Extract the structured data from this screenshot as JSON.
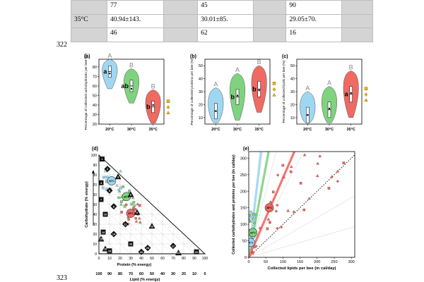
{
  "table": {
    "rows": [
      [
        "",
        "77",
        "",
        "45",
        "",
        "90",
        ""
      ],
      [
        "35°C",
        "40.94±143.",
        "",
        "30.01±85.",
        "",
        "29.05±70.",
        ""
      ],
      [
        "",
        "46",
        "",
        "62",
        "",
        "16",
        ""
      ]
    ]
  },
  "line_numbers": [
    "322",
    "323"
  ],
  "chart_data": [
    {
      "type": "violin",
      "panel": "(a)",
      "ylabel": "Percentage of collected carbohydrates per bee (%)",
      "categories": [
        "20°C",
        "30°C",
        "35°C"
      ],
      "y_ticks": [
        20,
        30,
        40,
        50,
        60,
        70,
        80
      ],
      "ylim": [
        20,
        88
      ],
      "medians": [
        75,
        60,
        38
      ],
      "means": [
        73,
        57,
        40
      ],
      "letters": [
        "A",
        "B",
        "B"
      ],
      "sub_letters": [
        "a",
        "ab",
        "b"
      ],
      "colors": [
        "#9fd7f2",
        "#7fd37f",
        "#ee6a62"
      ]
    },
    {
      "type": "violin",
      "panel": "(b)",
      "ylabel": "Percentage of collected proteins per bee (%)",
      "categories": [
        "20°C",
        "30°C",
        "35°C"
      ],
      "y_ticks": [
        10,
        20,
        30,
        40,
        50
      ],
      "ylim": [
        5,
        55
      ],
      "medians": [
        15,
        26,
        32
      ],
      "means": [
        15,
        27,
        31
      ],
      "letters": [
        "A",
        "A",
        "B"
      ],
      "sub_letters": [
        "",
        "b",
        "b"
      ],
      "colors": [
        "#9fd7f2",
        "#7fd37f",
        "#ee6a62"
      ]
    },
    {
      "type": "violin",
      "panel": "(c)",
      "ylabel": "Percentage of collected lipids per bee (%)",
      "categories": [
        "20°C",
        "30°C",
        "35°C"
      ],
      "y_ticks": [
        10,
        20,
        30,
        40,
        50
      ],
      "ylim": [
        5,
        55
      ],
      "medians": [
        12,
        16,
        28
      ],
      "means": [
        12,
        17,
        29
      ],
      "letters": [
        "A",
        "A",
        "B"
      ],
      "sub_letters": [
        "",
        "",
        "a"
      ],
      "colors": [
        "#9fd7f2",
        "#7fd37f",
        "#ee6a62"
      ]
    },
    {
      "type": "ternary",
      "panel": "(d)",
      "left_axis_label": "Carbohydrate (% energy)",
      "bottom_axis_label": "Protein (% energy)",
      "lower_axis_label": "Lipid (% energy)",
      "carb_ticks": [
        0,
        10,
        20,
        30,
        40,
        50,
        60,
        70,
        80,
        90,
        100
      ],
      "protein_ticks": [
        0,
        10,
        20,
        30,
        40,
        50,
        60,
        70,
        80,
        90,
        100
      ],
      "lipid_ticks": [
        100,
        90,
        80,
        70,
        60,
        50,
        40,
        30,
        20,
        10,
        0
      ],
      "centroids": [
        {
          "label": "20°C",
          "carb": 74,
          "protein": 12,
          "color": "#9fd7f2"
        },
        {
          "label": "30°C",
          "carb": 58,
          "protein": 26,
          "color": "#7fd37f"
        },
        {
          "label": "35°C",
          "carb": 41,
          "protein": 30,
          "color": "#ee6a62"
        }
      ],
      "diet_markers": [
        "1",
        "2",
        "3",
        "4",
        "5",
        "6",
        "7",
        "8",
        "9",
        "10",
        "11",
        "12",
        "13",
        "14",
        "15",
        "16",
        "17",
        "18",
        "19",
        "20",
        "21",
        "22",
        "23"
      ]
    },
    {
      "type": "scatter",
      "panel": "(e)",
      "xlabel": "Collected lipids per bee (in cal/day)",
      "ylabel": "Collected carbohydrates and proteins per bee (in cal/day)",
      "x_ticks": [
        0,
        50,
        100,
        150,
        200,
        250,
        300
      ],
      "y_ticks": [
        0,
        50,
        100,
        150,
        200,
        250,
        300
      ],
      "xlim": [
        0,
        310
      ],
      "ylim": [
        0,
        320
      ],
      "fit_slopes": [
        {
          "name": "20°C",
          "slope": 9.0,
          "color": "#9fd7f2"
        },
        {
          "name": "30°C",
          "slope": 5.5,
          "color": "#7fd37f"
        },
        {
          "name": "35°C",
          "slope": 2.4,
          "color": "#ee6a62"
        }
      ],
      "centroids": [
        {
          "label": "20°C",
          "x": 5,
          "y": 45,
          "color": "#9fd7f2"
        },
        {
          "label": "30°C",
          "x": 12,
          "y": 75,
          "color": "#7fd37f"
        },
        {
          "label": "35°C",
          "x": 60,
          "y": 150,
          "color": "#ee6a62"
        }
      ]
    }
  ]
}
